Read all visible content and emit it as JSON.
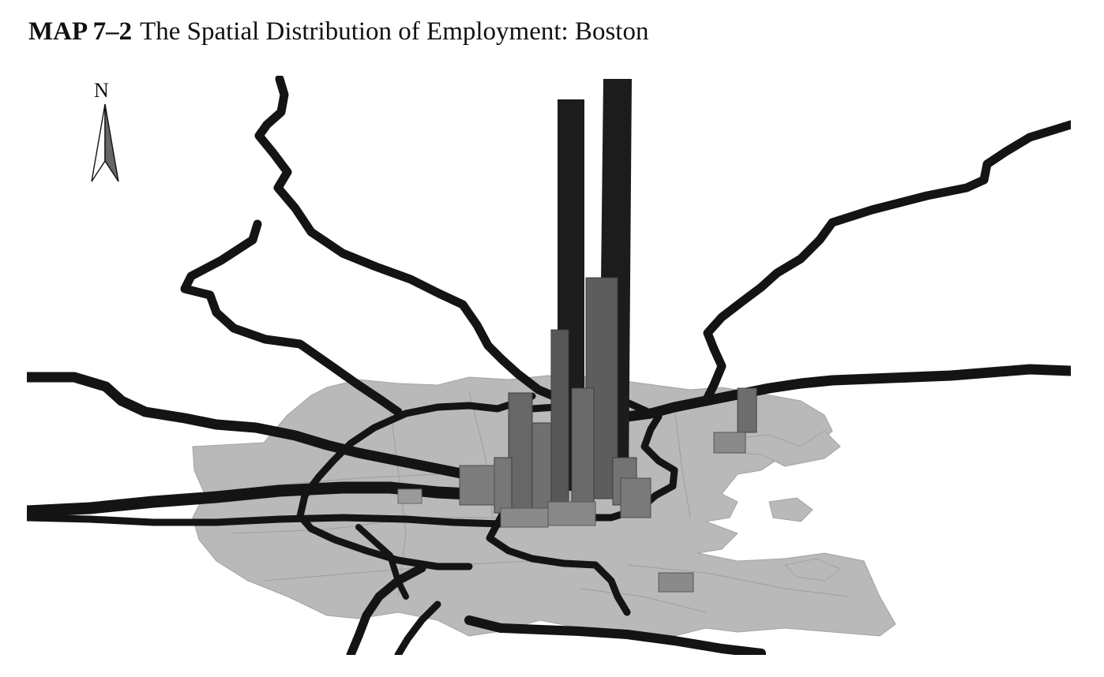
{
  "figure": {
    "label": "MAP 7–2",
    "title": "The Spatial Distribution of Employment: Boston"
  },
  "compass": {
    "letter": "N",
    "icon": "north-arrow-icon"
  },
  "colors": {
    "land": "#b9b9b9",
    "land_edge": "#9d9d9d",
    "bars": "#5d5d5d",
    "bars_dark": "#1c1c1c",
    "highways": "#141414",
    "background": "#ffffff"
  }
}
